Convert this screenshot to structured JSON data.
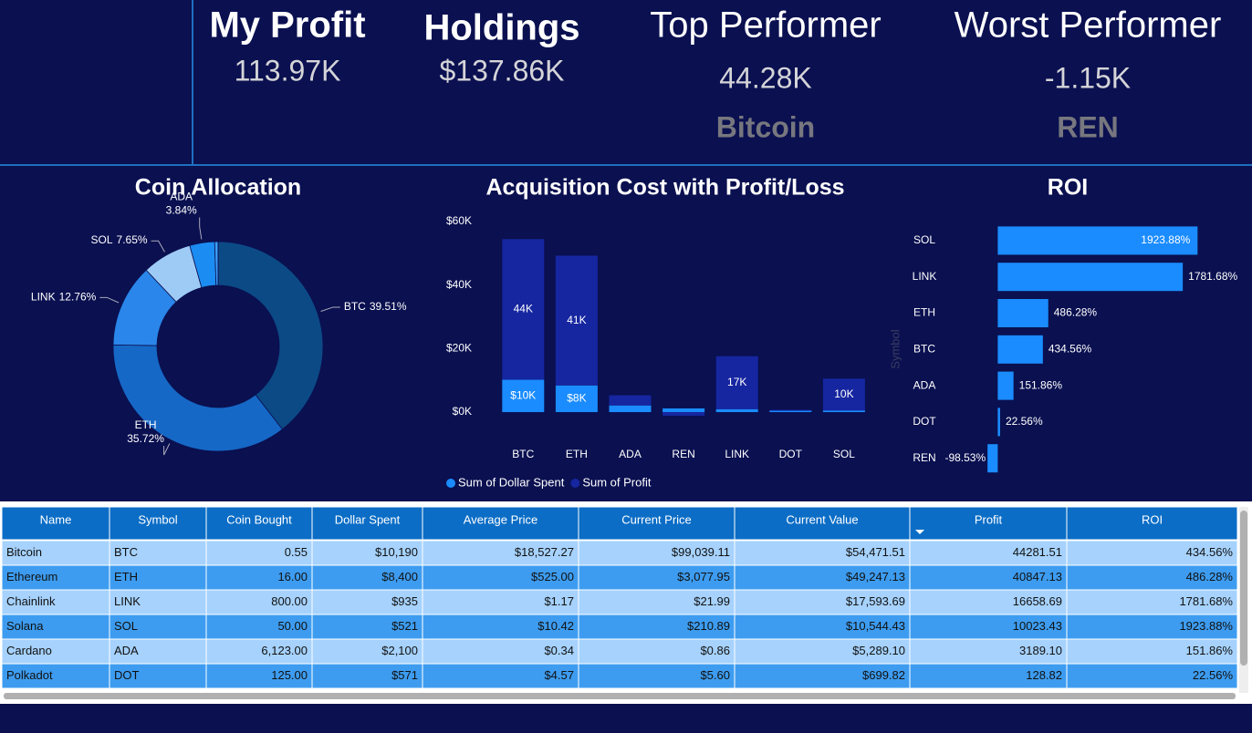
{
  "kpis": [
    {
      "title": "My Profit",
      "value": "113.97K"
    },
    {
      "title": "Holdings",
      "value": "$137.86K"
    },
    {
      "title": "Top Performer",
      "value": "44.28K",
      "subtitle": "Bitcoin"
    },
    {
      "title": "Worst Performer",
      "value": "-1.15K",
      "subtitle": "REN"
    }
  ],
  "chart_data": [
    {
      "type": "pie",
      "title": "Coin Allocation",
      "donut": true,
      "categories": [
        "BTC",
        "ETH",
        "LINK",
        "SOL",
        "ADA",
        null,
        null
      ],
      "values": [
        39.51,
        35.72,
        12.76,
        7.65,
        3.84,
        0.51,
        0.01
      ],
      "value_labels": [
        "39.51%",
        "35.72%",
        "12.76%",
        "7.65%",
        "3.84%",
        null,
        null
      ],
      "colors": [
        "#0c4a86",
        "#1668c6",
        "#2a86ea",
        "#9ecbf6",
        "#1b8cf2",
        "#3aa0ff",
        "#f25c7a"
      ]
    },
    {
      "type": "bar",
      "stacked": true,
      "title": "Acquisition Cost with Profit/Loss",
      "categories": [
        "BTC",
        "ETH",
        "ADA",
        "REN",
        "LINK",
        "DOT",
        "SOL"
      ],
      "series": [
        {
          "name": "Sum of Dollar Spent",
          "color": "#1a8cff",
          "values": [
            10190,
            8400,
            2100,
            1167,
            935,
            571,
            521
          ],
          "value_labels": [
            "$10K",
            "$8K",
            null,
            null,
            null,
            null,
            null
          ]
        },
        {
          "name": "Sum of Profit",
          "color": "#1626a0",
          "values": [
            44281.51,
            40847.13,
            3189.1,
            -1150,
            16658.69,
            128.82,
            10023.43
          ],
          "value_labels": [
            "44K",
            "41K",
            null,
            null,
            "17K",
            null,
            "10K"
          ]
        }
      ],
      "ylim": [
        -2000,
        60000
      ],
      "yticks": [
        {
          "value": 0,
          "label": "$0K"
        },
        {
          "value": 20000,
          "label": "$20K"
        },
        {
          "value": 40000,
          "label": "$40K"
        },
        {
          "value": 60000,
          "label": "$60K"
        }
      ],
      "legend": "bottom-left"
    },
    {
      "type": "hbar",
      "title": "ROI",
      "y_label": "Symbol",
      "color": "#1a8cff",
      "categories": [
        "SOL",
        "LINK",
        "ETH",
        "BTC",
        "ADA",
        "DOT",
        "REN"
      ],
      "values": [
        1923.88,
        1781.68,
        486.28,
        434.56,
        151.86,
        22.56,
        -98.53
      ],
      "value_labels": [
        "1923.88%",
        "1781.68%",
        "486.28%",
        "434.56%",
        "151.86%",
        "22.56%",
        "-98.53%"
      ],
      "xlim": [
        -100,
        2000
      ]
    }
  ],
  "table": {
    "columns": [
      "Name",
      "Symbol",
      "Coin Bought",
      "Dollar Spent",
      "Average Price",
      "Current Price",
      "Current Value",
      "Profit",
      "ROI"
    ],
    "rows": [
      [
        "Bitcoin",
        "BTC",
        "0.55",
        "$10,190",
        "$18,527.27",
        "$99,039.11",
        "$54,471.51",
        "44281.51",
        "434.56%"
      ],
      [
        "Ethereum",
        "ETH",
        "16.00",
        "$8,400",
        "$525.00",
        "$3,077.95",
        "$49,247.13",
        "40847.13",
        "486.28%"
      ],
      [
        "Chainlink",
        "LINK",
        "800.00",
        "$935",
        "$1.17",
        "$21.99",
        "$17,593.69",
        "16658.69",
        "1781.68%"
      ],
      [
        "Solana",
        "SOL",
        "50.00",
        "$521",
        "$10.42",
        "$210.89",
        "$10,544.43",
        "10023.43",
        "1923.88%"
      ],
      [
        "Cardano",
        "ADA",
        "6,123.00",
        "$2,100",
        "$0.34",
        "$0.86",
        "$5,289.10",
        "3189.10",
        "151.86%"
      ],
      [
        "Polkadot",
        "DOT",
        "125.00",
        "$571",
        "$4.57",
        "$5.60",
        "$699.82",
        "128.82",
        "22.56%"
      ]
    ]
  }
}
